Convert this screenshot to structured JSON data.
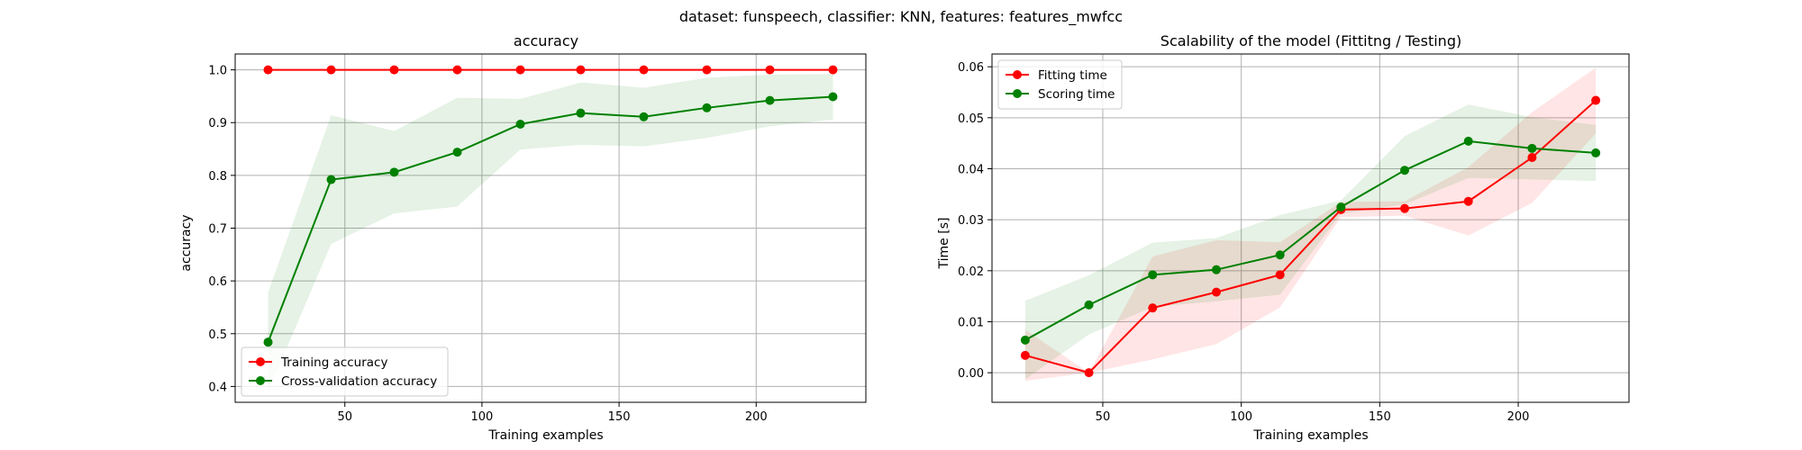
{
  "suptitle": "dataset: funspeech, classifier: KNN, features: features_mwfcc",
  "chart_data": [
    {
      "type": "line",
      "title": "accuracy",
      "xlabel": "Training examples",
      "ylabel": "accuracy",
      "xlim": [
        10,
        240
      ],
      "ylim": [
        0.37,
        1.03
      ],
      "xticks": [
        50,
        100,
        150,
        200
      ],
      "yticks": [
        0.4,
        0.5,
        0.6,
        0.7,
        0.8,
        0.9,
        1.0
      ],
      "ytick_decimals": 1,
      "grid": true,
      "legend_position": "lower-left",
      "x": [
        22,
        45,
        68,
        91,
        114,
        136,
        159,
        182,
        205,
        228
      ],
      "series": [
        {
          "name": "Training accuracy",
          "color": "#ff0000",
          "values": [
            1.0,
            1.0,
            1.0,
            1.0,
            1.0,
            1.0,
            1.0,
            1.0,
            1.0,
            1.0
          ],
          "lower": [
            1.0,
            1.0,
            1.0,
            1.0,
            1.0,
            1.0,
            1.0,
            1.0,
            1.0,
            1.0
          ],
          "upper": [
            1.0,
            1.0,
            1.0,
            1.0,
            1.0,
            1.0,
            1.0,
            1.0,
            1.0,
            1.0
          ]
        },
        {
          "name": "Cross-validation accuracy",
          "color": "#008000",
          "values": [
            0.484,
            0.792,
            0.806,
            0.844,
            0.897,
            0.918,
            0.911,
            0.928,
            0.942,
            0.949
          ],
          "lower": [
            0.39,
            0.67,
            0.728,
            0.741,
            0.849,
            0.858,
            0.855,
            0.871,
            0.893,
            0.906
          ],
          "upper": [
            0.578,
            0.914,
            0.884,
            0.947,
            0.945,
            0.976,
            0.966,
            0.985,
            0.991,
            0.992
          ]
        }
      ]
    },
    {
      "type": "line",
      "title": "Scalability of the model (Fittitng / Testing)",
      "xlabel": "Training examples",
      "ylabel": "Time [s]",
      "xlim": [
        10,
        240
      ],
      "ylim": [
        -0.0058,
        0.0625
      ],
      "xticks": [
        50,
        100,
        150,
        200
      ],
      "yticks": [
        0.0,
        0.01,
        0.02,
        0.03,
        0.04,
        0.05,
        0.06
      ],
      "ytick_decimals": 2,
      "grid": true,
      "legend_position": "upper-left",
      "x": [
        22,
        45,
        68,
        91,
        114,
        136,
        159,
        182,
        205,
        228
      ],
      "series": [
        {
          "name": "Fitting time",
          "color": "#ff0000",
          "values": [
            0.0034,
            0.0,
            0.0127,
            0.0158,
            0.0192,
            0.032,
            0.0322,
            0.0336,
            0.0422,
            0.0534
          ],
          "lower": [
            -0.0016,
            -0.0,
            0.0026,
            0.0056,
            0.0128,
            0.0305,
            0.0308,
            0.0269,
            0.0333,
            0.0469
          ],
          "upper": [
            0.0084,
            0.0,
            0.0228,
            0.026,
            0.0256,
            0.0335,
            0.0336,
            0.0403,
            0.0511,
            0.0598
          ]
        },
        {
          "name": "Scoring time",
          "color": "#008000",
          "values": [
            0.0064,
            0.0133,
            0.0192,
            0.0202,
            0.0231,
            0.0325,
            0.0397,
            0.0454,
            0.044,
            0.0431
          ],
          "lower": [
            -0.0013,
            0.0075,
            0.0129,
            0.014,
            0.0153,
            0.0312,
            0.033,
            0.0382,
            0.0379,
            0.0376
          ],
          "upper": [
            0.0141,
            0.0191,
            0.0255,
            0.0264,
            0.0309,
            0.0338,
            0.0464,
            0.0526,
            0.0501,
            0.0486
          ]
        }
      ]
    }
  ]
}
